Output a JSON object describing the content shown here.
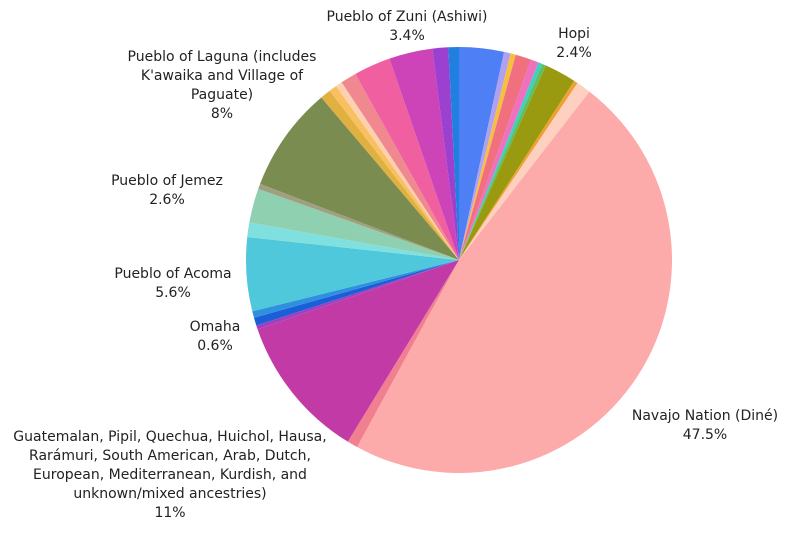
{
  "chart_data": {
    "type": "pie",
    "categories": [
      "Pueblo of Zuni (Ashiwi)",
      null,
      null,
      null,
      null,
      null,
      null,
      "Hopi",
      null,
      null,
      "Navajo Nation (Diné)",
      null,
      "Guatemalan, Pipil, Quechua, Huichol, Hausa, Rarámuri, South American, Arab, Dutch, European, Mediterranean, Kurdish, and unknown/mixed ancestries)",
      null,
      "Omaha",
      null,
      "Pueblo of Acoma",
      null,
      "Pueblo of Jemez",
      null,
      "Pueblo of Laguna (includes K'awaika and Village of Paguate)",
      null,
      null,
      null,
      null,
      null,
      null,
      null,
      null
    ],
    "values": [
      3.4,
      0.5,
      0.4,
      1.2,
      0.6,
      0.3,
      0.3,
      2.4,
      0.3,
      1.1,
      47.5,
      0.8,
      11,
      0.3,
      0.6,
      0.5,
      5.6,
      1.1,
      2.6,
      0.4,
      8,
      0.8,
      0.6,
      0.5,
      1.2,
      2.8,
      3.3,
      1.2,
      0.8
    ],
    "value_labels": [
      "3.4%",
      null,
      null,
      null,
      null,
      null,
      null,
      "2.4%",
      null,
      null,
      "47.5%",
      null,
      "11%",
      null,
      "0.6%",
      null,
      "5.6%",
      null,
      "2.6%",
      null,
      "8%",
      null,
      null,
      null,
      null,
      null,
      null,
      null,
      null
    ],
    "colors": [
      "#4f7ff5",
      "#b0a0f0",
      "#f5c040",
      "#f07080",
      "#f070c0",
      "#40d0c0",
      "#60c060",
      "#9a9a10",
      "#f0a030",
      "#fdd0c0",
      "#fdaaaa",
      "#f08090",
      "#c23aa5",
      "#a040c0",
      "#1a5fd8",
      "#3090e0",
      "#50c8dc",
      "#80e0e0",
      "#8ed0b0",
      "#a0a080",
      "#7a8c50",
      "#e0b040",
      "#f8c060",
      "#fdd0b0",
      "#f08890",
      "#f060a0",
      "#cc44b8",
      "#9c40d0",
      "#2080e0"
    ]
  }
}
